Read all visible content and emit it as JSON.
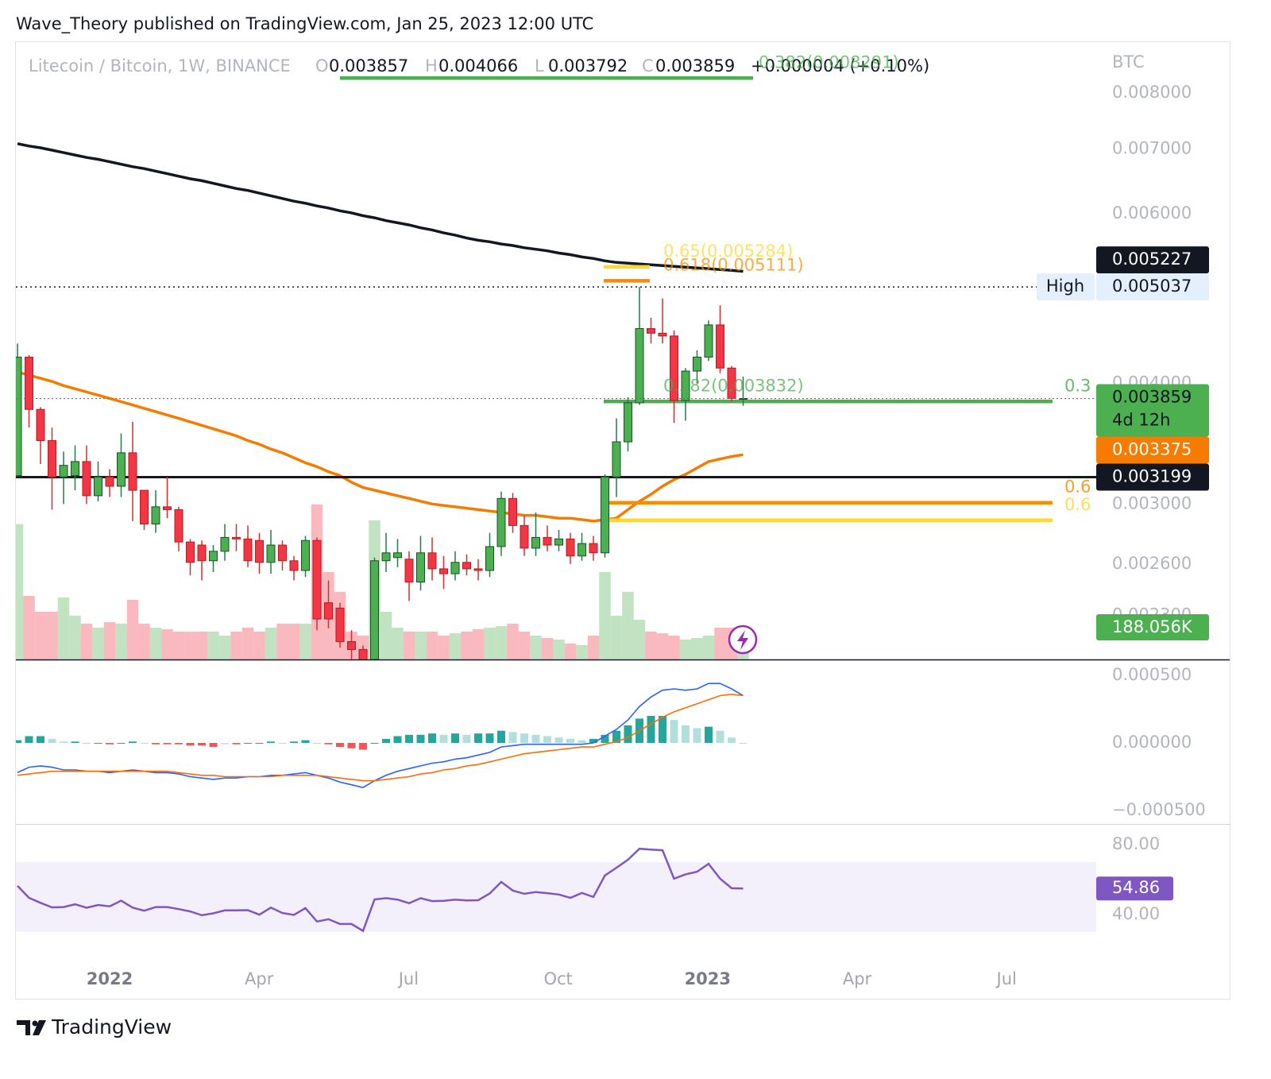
{
  "header": {
    "attribution": "Wave_Theory published on TradingView.com, Jan 25, 2023 12:00 UTC"
  },
  "footer": {
    "brand": "TradingView"
  },
  "chart_data": {
    "type": "candlestick",
    "symbol": "Litecoin / Bitcoin, 1W, BINANCE",
    "ohlc_letters": [
      "O",
      "H",
      "L",
      "C"
    ],
    "change": "+0.000004 (+0.10%)",
    "currency": "BTC",
    "countdown": "4d 12h",
    "up_color": "#4caf50",
    "down_color": "#f23645",
    "log_scale": true,
    "grid": false,
    "ylim": [
      0.00207,
      0.009
    ],
    "yticks": [
      {
        "value": 0.008,
        "label": "0.008000"
      },
      {
        "value": 0.007,
        "label": "0.007000"
      },
      {
        "value": 0.006,
        "label": "0.006000"
      },
      {
        "value": 0.004,
        "label": "0.004000"
      },
      {
        "value": 0.003,
        "label": "0.003000"
      },
      {
        "value": 0.0026,
        "label": "0.002600"
      },
      {
        "value": 0.0023,
        "label": "0.002300"
      }
    ],
    "x_labels": [
      "2022",
      "Apr",
      "Jul",
      "Oct",
      "2023",
      "Apr",
      "Jul"
    ],
    "candles": {
      "open": [
        0.00321,
        0.00426,
        0.00376,
        0.00349,
        0.0032,
        0.00321,
        0.00332,
        0.00306,
        0.0032,
        0.00313,
        0.00339,
        0.0031,
        0.00286,
        0.00298,
        0.00296,
        0.00274,
        0.00272,
        0.00262,
        0.00268,
        0.00277,
        0.00276,
        0.00275,
        0.00261,
        0.00272,
        0.00262,
        0.00256,
        0.00275,
        0.00237,
        0.00234,
        0.00216,
        0.00212,
        0.00207,
        0.00262,
        0.00264,
        0.00263,
        0.00249,
        0.00267,
        0.00257,
        0.00254,
        0.00261,
        0.00257,
        0.00256,
        0.00271,
        0.00304,
        0.00285,
        0.0027,
        0.00277,
        0.00272,
        0.00276,
        0.00265,
        0.00273,
        0.00267,
        0.0032,
        0.00348,
        0.00382,
        0.00456,
        0.00451,
        0.00448,
        0.00384,
        0.00412,
        0.00426,
        0.0046,
        0.00415,
        0.003857
      ],
      "high": [
        0.0044,
        0.00428,
        0.00378,
        0.0036,
        0.0034,
        0.00345,
        0.00345,
        0.00332,
        0.00326,
        0.00355,
        0.00365,
        0.0031,
        0.0031,
        0.0032,
        0.00298,
        0.00276,
        0.00275,
        0.00272,
        0.00286,
        0.00286,
        0.00285,
        0.0028,
        0.00282,
        0.00275,
        0.00265,
        0.00278,
        0.00277,
        0.0025,
        0.00237,
        0.00222,
        0.00214,
        0.00264,
        0.0028,
        0.00276,
        0.00268,
        0.00278,
        0.00277,
        0.00265,
        0.00268,
        0.00266,
        0.00263,
        0.0028,
        0.00309,
        0.00308,
        0.00292,
        0.00294,
        0.00285,
        0.00282,
        0.0028,
        0.0028,
        0.00278,
        0.00322,
        0.00368,
        0.00387,
        0.005037,
        0.00468,
        0.0049,
        0.00454,
        0.00415,
        0.00433,
        0.00465,
        0.00482,
        0.00417,
        0.004066
      ],
      "low": [
        0.0032,
        0.0036,
        0.0033,
        0.00296,
        0.003,
        0.0031,
        0.003,
        0.00302,
        0.00305,
        0.00305,
        0.00288,
        0.00282,
        0.0028,
        0.0029,
        0.00268,
        0.00253,
        0.0025,
        0.00255,
        0.00262,
        0.00268,
        0.00258,
        0.00254,
        0.00254,
        0.00256,
        0.0025,
        0.00252,
        0.00222,
        0.00223,
        0.00213,
        0.00207,
        0.00205,
        0.00205,
        0.00255,
        0.00258,
        0.00238,
        0.00244,
        0.0025,
        0.00245,
        0.0025,
        0.00253,
        0.0025,
        0.00252,
        0.00265,
        0.0028,
        0.00265,
        0.00265,
        0.00268,
        0.00268,
        0.0026,
        0.00262,
        0.00262,
        0.00264,
        0.00305,
        0.0034,
        0.0038,
        0.0044,
        0.0044,
        0.00364,
        0.00366,
        0.004,
        0.00422,
        0.0041,
        0.00383,
        0.003792
      ],
      "close": [
        0.00426,
        0.00376,
        0.00349,
        0.0032,
        0.00329,
        0.00332,
        0.00306,
        0.0032,
        0.00313,
        0.00339,
        0.0031,
        0.00286,
        0.00298,
        0.00296,
        0.00274,
        0.00261,
        0.00262,
        0.00268,
        0.00277,
        0.00276,
        0.00262,
        0.00261,
        0.00272,
        0.00262,
        0.00256,
        0.00275,
        0.00228,
        0.00228,
        0.00216,
        0.00212,
        0.00207,
        0.00262,
        0.00267,
        0.00267,
        0.00249,
        0.00267,
        0.00257,
        0.00254,
        0.00261,
        0.00257,
        0.00256,
        0.00271,
        0.00304,
        0.00285,
        0.0027,
        0.00277,
        0.00272,
        0.00276,
        0.00265,
        0.00273,
        0.00267,
        0.0032,
        0.00348,
        0.00382,
        0.00456,
        0.00451,
        0.00448,
        0.00384,
        0.00412,
        0.00426,
        0.0046,
        0.00415,
        0.00386,
        0.003859
      ]
    },
    "moving_averages": [
      {
        "color": "#131722",
        "values": [
          0.00709,
          0.00705,
          0.00702,
          0.00698,
          0.00694,
          0.0069,
          0.00686,
          0.00683,
          0.00679,
          0.00675,
          0.00671,
          0.00668,
          0.00664,
          0.0066,
          0.00656,
          0.00652,
          0.00649,
          0.00645,
          0.00641,
          0.00637,
          0.00634,
          0.0063,
          0.00626,
          0.00622,
          0.00618,
          0.00615,
          0.00611,
          0.00608,
          0.00604,
          0.00601,
          0.00597,
          0.00594,
          0.0059,
          0.00587,
          0.00584,
          0.0058,
          0.00577,
          0.00573,
          0.0057,
          0.00566,
          0.00563,
          0.00561,
          0.00558,
          0.00556,
          0.00553,
          0.00551,
          0.00549,
          0.00546,
          0.00544,
          0.00541,
          0.00539,
          0.00536,
          0.00534,
          0.00533,
          0.00532,
          0.00531,
          0.0053,
          0.00529,
          0.00528,
          0.00527,
          0.00526,
          0.00525,
          0.00524,
          0.005227
        ]
      },
      {
        "color": "#f57c00",
        "values": [
          0.00411,
          0.00408,
          0.00405,
          0.00402,
          0.00398,
          0.00395,
          0.00392,
          0.00389,
          0.00386,
          0.00383,
          0.0038,
          0.00377,
          0.00374,
          0.00371,
          0.00368,
          0.00365,
          0.00362,
          0.00359,
          0.00356,
          0.00353,
          0.00349,
          0.00346,
          0.00342,
          0.00339,
          0.00335,
          0.00331,
          0.00328,
          0.00324,
          0.00321,
          0.00316,
          0.00312,
          0.0031,
          0.00308,
          0.00306,
          0.00304,
          0.00302,
          0.003,
          0.00299,
          0.00298,
          0.00297,
          0.00296,
          0.00295,
          0.00294,
          0.00293,
          0.00292,
          0.00292,
          0.00291,
          0.0029,
          0.0029,
          0.00289,
          0.00288,
          0.00289,
          0.0029,
          0.00296,
          0.00302,
          0.00307,
          0.00313,
          0.00318,
          0.00322,
          0.00327,
          0.00332,
          0.00334,
          0.00336,
          0.003375
        ]
      }
    ],
    "horizontal_lines": [
      {
        "price": 0.005037,
        "label": "High",
        "style": "dotted",
        "color": "#131722"
      },
      {
        "price": 0.003199,
        "style": "solid",
        "color": "#131722"
      }
    ],
    "fib_levels": [
      {
        "label": "0.382(0.008291)",
        "price": 0.008291,
        "color": "#4caf50"
      },
      {
        "label": "0.65(0.005284)",
        "price": 0.005284,
        "color": "#fdd835"
      },
      {
        "label": "0.618(0.005111)",
        "price": 0.005111,
        "color": "#fb8c00"
      },
      {
        "label": "0.382(0.003832)",
        "right_label": "0.3",
        "price": 0.003832,
        "color": "#4caf50"
      },
      {
        "right_label": "0.6",
        "price": 0.003009,
        "color": "#fb8c00"
      },
      {
        "right_label": "0.6",
        "price": 0.002886,
        "color": "#fdd835"
      }
    ],
    "volume": {
      "ylim": [
        0,
        3640000
      ],
      "values": [
        800000,
        376000,
        282000,
        282000,
        367000,
        259000,
        212000,
        188000,
        221000,
        212000,
        353000,
        212000,
        188000,
        179000,
        165000,
        165000,
        165000,
        165000,
        141000,
        165000,
        188000,
        165000,
        188000,
        212000,
        212000,
        212000,
        917000,
        517000,
        400000,
        165000,
        141000,
        823000,
        282000,
        188000,
        165000,
        165000,
        165000,
        141000,
        155000,
        165000,
        179000,
        188000,
        197000,
        212000,
        165000,
        141000,
        127000,
        118000,
        94000,
        85000,
        141000,
        517000,
        259000,
        400000,
        235000,
        165000,
        155000,
        141000,
        118000,
        127000,
        141000,
        188000,
        188000,
        188056
      ],
      "value_labels": [
        null,
        null,
        null,
        null,
        null,
        null,
        null,
        null,
        null,
        null,
        null,
        null,
        null,
        null,
        null,
        null,
        null,
        null,
        null,
        null,
        null,
        null,
        null,
        null,
        null,
        null,
        null,
        null,
        null,
        null,
        null,
        null,
        null,
        null,
        null,
        null,
        null,
        null,
        null,
        null,
        null,
        null,
        null,
        null,
        null,
        null,
        null,
        null,
        null,
        null,
        null,
        null,
        null,
        null,
        null,
        null,
        null,
        null,
        null,
        null,
        null,
        null,
        null,
        "188.056K"
      ]
    },
    "macd": {
      "ylim": [
        -0.0006,
        0.0006
      ],
      "yticks": [
        {
          "value": 0.0005,
          "label": "0.000500"
        },
        {
          "value": 0,
          "label": "0.000000"
        },
        {
          "value": -0.0005,
          "label": "−0.000500"
        }
      ],
      "histogram_colors": [
        "#26a69a",
        "#b2dfdb",
        "#ff5252",
        "#ffcdd2"
      ],
      "histogram": [
        2e-05,
        5e-05,
        5e-05,
        3e-05,
        1e-05,
        1e-05,
        0,
        0,
        -1e-05,
        0,
        1e-05,
        0,
        -1e-05,
        -1e-05,
        -1e-05,
        -2e-05,
        -2e-05,
        -3e-05,
        -1e-05,
        -1e-05,
        0,
        0,
        1e-05,
        0,
        1e-05,
        2e-05,
        0,
        -1e-05,
        -3e-05,
        -4e-05,
        -5e-05,
        0,
        3e-05,
        5e-05,
        6e-05,
        6e-05,
        7e-05,
        6e-05,
        7e-05,
        6e-05,
        7e-05,
        7e-05,
        9e-05,
        8e-05,
        7e-05,
        6e-05,
        5e-05,
        4e-05,
        3e-05,
        2e-05,
        3e-05,
        6e-05,
        9e-05,
        0.00013,
        0.00018,
        0.0002,
        0.0002,
        0.00017,
        0.00013,
        0.00011,
        0.00012,
        9e-05,
        4e-05,
        0
      ],
      "series": [
        {
          "color": "#2962ff",
          "values": [
            -0.00022,
            -0.00018,
            -0.00017,
            -0.00018,
            -0.0002,
            -0.0002,
            -0.00021,
            -0.00021,
            -0.00022,
            -0.00021,
            -0.0002,
            -0.00021,
            -0.00022,
            -0.00022,
            -0.00023,
            -0.00025,
            -0.00026,
            -0.00027,
            -0.00026,
            -0.00026,
            -0.00025,
            -0.00025,
            -0.00024,
            -0.00024,
            -0.00023,
            -0.00022,
            -0.00024,
            -0.00026,
            -0.00029,
            -0.00031,
            -0.00033,
            -0.00028,
            -0.00024,
            -0.00021,
            -0.00019,
            -0.00017,
            -0.00015,
            -0.00014,
            -0.00012,
            -0.00011,
            -9e-05,
            -7e-05,
            -3e-05,
            -2e-05,
            -1e-05,
            -1e-05,
            -1e-05,
            -1e-05,
            -1e-05,
            -1e-05,
            0,
            5e-05,
            0.0001,
            0.00017,
            0.00027,
            0.00034,
            0.00039,
            0.0004,
            0.00039,
            0.0004,
            0.00044,
            0.00044,
            0.0004,
            0.00035
          ]
        },
        {
          "color": "#ff6d00",
          "values": [
            -0.00024,
            -0.00023,
            -0.00022,
            -0.00021,
            -0.00021,
            -0.00021,
            -0.00021,
            -0.00021,
            -0.00021,
            -0.00021,
            -0.00021,
            -0.00021,
            -0.00021,
            -0.00021,
            -0.00022,
            -0.00023,
            -0.00024,
            -0.00024,
            -0.00025,
            -0.00025,
            -0.00025,
            -0.00025,
            -0.00025,
            -0.00024,
            -0.00024,
            -0.00024,
            -0.00024,
            -0.00025,
            -0.00026,
            -0.00027,
            -0.00028,
            -0.00028,
            -0.00027,
            -0.00026,
            -0.00025,
            -0.00023,
            -0.00022,
            -0.0002,
            -0.00019,
            -0.00017,
            -0.00016,
            -0.00014,
            -0.00012,
            -0.0001,
            -8e-05,
            -7e-05,
            -6e-05,
            -5e-05,
            -4e-05,
            -3e-05,
            -3e-05,
            -1e-05,
            1e-05,
            4e-05,
            9e-05,
            0.00014,
            0.00019,
            0.00023,
            0.00026,
            0.00029,
            0.00032,
            0.00035,
            0.00036,
            0.00035
          ]
        }
      ]
    },
    "rsi": {
      "ylim": [
        13,
        91
      ],
      "yticks": [
        {
          "value": 80,
          "label": "80.00"
        },
        {
          "value": 40,
          "label": "40.00"
        }
      ],
      "band": [
        30,
        70
      ],
      "color": "#7e57c2",
      "values": [
        56.4,
        49.5,
        46.6,
        44,
        44.2,
        45.8,
        43.8,
        45.4,
        44.6,
        47.9,
        43.9,
        42.1,
        44.2,
        44.2,
        43,
        41.7,
        39.5,
        40.6,
        42.3,
        42.3,
        42.4,
        39.8,
        43.9,
        40.8,
        39.7,
        43.6,
        35.9,
        37.2,
        34.5,
        34.5,
        30.5,
        48.6,
        49.3,
        48.5,
        46.4,
        49.3,
        47.6,
        47.8,
        48.5,
        48,
        48.1,
        52,
        58.6,
        53.7,
        51.8,
        52.8,
        52.2,
        51.4,
        49.5,
        52.3,
        50,
        62.3,
        66.8,
        71.4,
        77.7,
        77.2,
        76.8,
        60.5,
        63,
        64.5,
        69,
        60.5,
        55,
        54.86
      ]
    }
  }
}
